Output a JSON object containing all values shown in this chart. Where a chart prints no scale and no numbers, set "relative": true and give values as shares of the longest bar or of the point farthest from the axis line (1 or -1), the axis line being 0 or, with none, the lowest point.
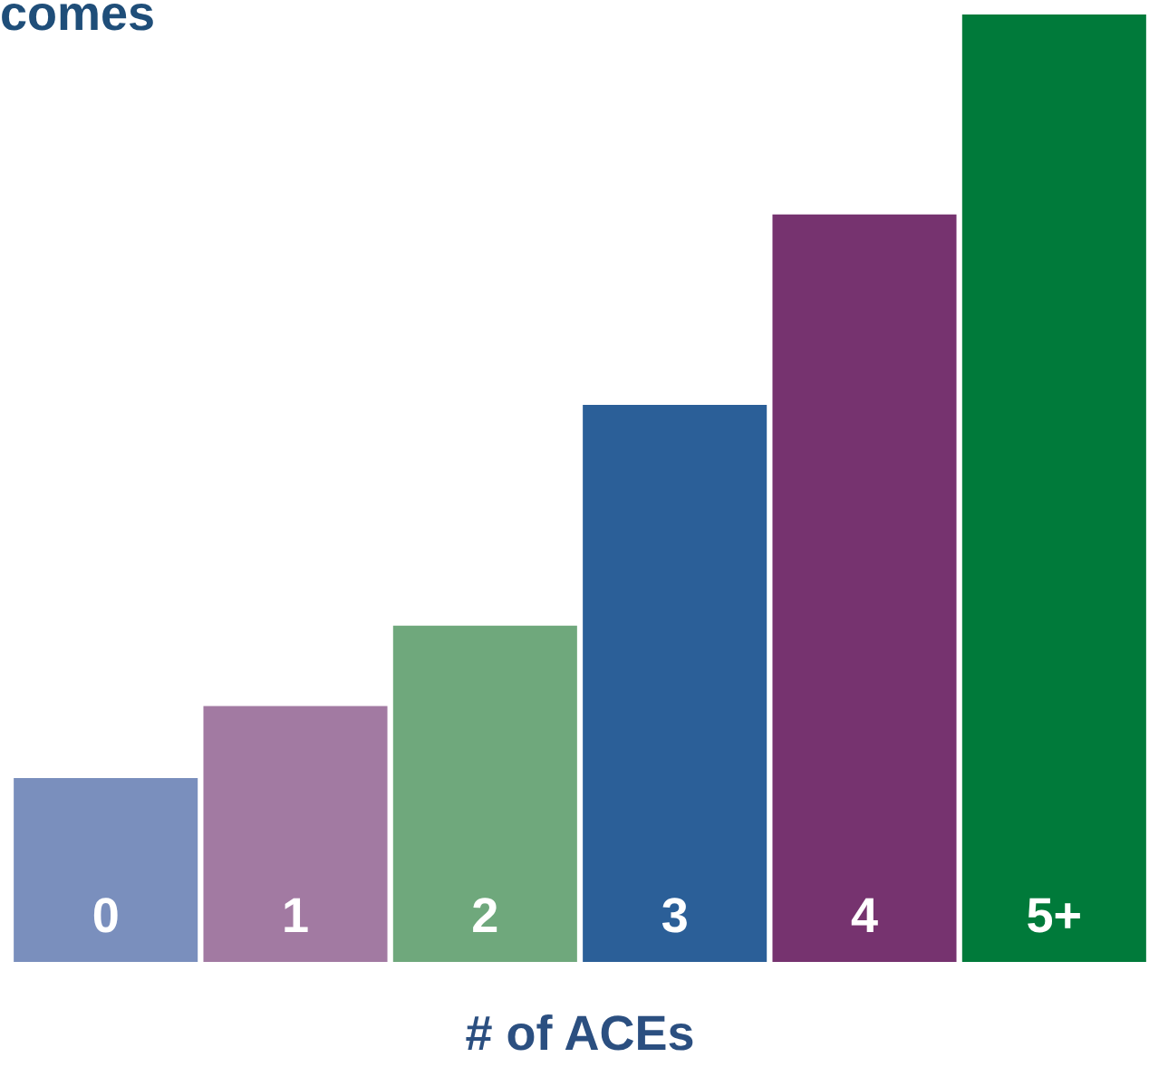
{
  "chart_data": {
    "type": "bar",
    "title": "comes",
    "xlabel": "# of ACEs",
    "relative": true,
    "categories": [
      "0",
      "1",
      "2",
      "3",
      "4",
      "5+"
    ],
    "values": [
      0.194,
      0.27,
      0.355,
      0.588,
      0.789,
      1
    ],
    "colors": [
      "#7a8fbd",
      "#a27aa2",
      "#6fa87c",
      "#2b5f98",
      "#76336f",
      "#007a3a"
    ]
  }
}
